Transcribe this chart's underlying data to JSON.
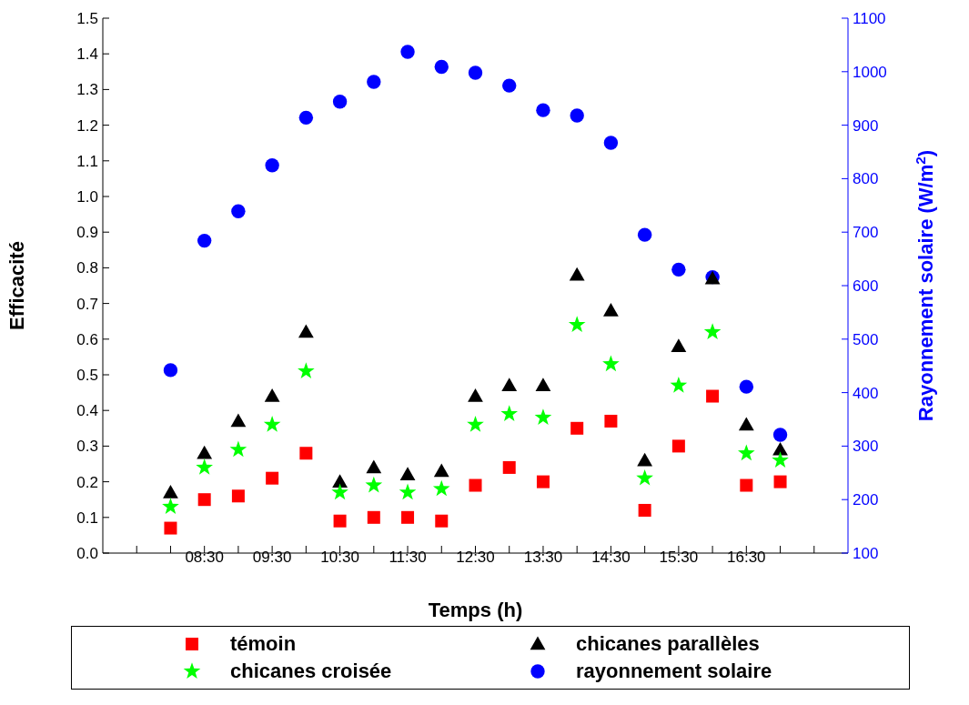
{
  "chart_data": {
    "type": "scatter",
    "xlabel": "Temps (h)",
    "ylabel": "Efficacité",
    "y2label": "Rayonnement solaire (W/m$^{2}$)",
    "x": [
      8,
      8.5,
      9,
      9.5,
      10,
      10.5,
      11,
      11.5,
      12,
      12.5,
      13,
      13.5,
      14,
      14.5,
      15,
      15.5,
      16,
      16.5,
      17
    ],
    "series": [
      {
        "name": "témoin",
        "color": "#ff0000",
        "marker": "square",
        "values": [
          0.07,
          0.15,
          0.16,
          0.21,
          0.28,
          0.09,
          0.1,
          0.1,
          0.09,
          0.19,
          0.24,
          0.2,
          0.35,
          0.37,
          0.12,
          0.3,
          0.44,
          0.19,
          0.2
        ]
      },
      {
        "name": "chicanes parallèles",
        "color": "#000000",
        "marker": "triangle",
        "values": [
          0.17,
          0.28,
          0.37,
          0.44,
          0.62,
          0.2,
          0.24,
          0.22,
          0.23,
          0.44,
          0.47,
          0.47,
          0.78,
          0.68,
          0.26,
          0.58,
          0.77,
          0.36,
          0.29
        ]
      },
      {
        "name": "chicanes croisée",
        "color": "#00ff00",
        "marker": "star",
        "values": [
          0.13,
          0.24,
          0.29,
          0.36,
          0.51,
          0.17,
          0.19,
          0.17,
          0.18,
          0.36,
          0.39,
          0.38,
          0.64,
          0.53,
          0.21,
          0.47,
          0.62,
          0.28,
          0.26
        ]
      },
      {
        "name": "rayonnement solaire",
        "color": "#0000ff",
        "marker": "circle",
        "axis": "y2",
        "values": [
          442,
          684,
          739,
          825,
          914,
          944,
          981,
          1037,
          1009,
          998,
          974,
          928,
          918,
          867,
          695,
          630,
          616,
          411,
          321
        ]
      }
    ],
    "xlim": [
      7,
      18
    ],
    "xticks": [
      {
        "value": 7.5,
        "label": null
      },
      {
        "value": 8,
        "label": null
      },
      {
        "value": 8.5,
        "label": "08:30"
      },
      {
        "value": 9,
        "label": null
      },
      {
        "value": 9.5,
        "label": "09:30"
      },
      {
        "value": 10,
        "label": null
      },
      {
        "value": 10.5,
        "label": "10:30"
      },
      {
        "value": 11,
        "label": null
      },
      {
        "value": 11.5,
        "label": "11:30"
      },
      {
        "value": 12,
        "label": null
      },
      {
        "value": 12.5,
        "label": "12:30"
      },
      {
        "value": 13,
        "label": null
      },
      {
        "value": 13.5,
        "label": "13:30"
      },
      {
        "value": 14,
        "label": null
      },
      {
        "value": 14.5,
        "label": "14:30"
      },
      {
        "value": 15,
        "label": null
      },
      {
        "value": 15.5,
        "label": "15:30"
      },
      {
        "value": 16,
        "label": null
      },
      {
        "value": 16.5,
        "label": "16:30"
      },
      {
        "value": 17,
        "label": null
      },
      {
        "value": 17.5,
        "label": null
      }
    ],
    "ylim": [
      0,
      1.5
    ],
    "yticks": [
      {
        "value": 0,
        "label": "0.0"
      },
      0.1,
      0.2,
      0.3,
      0.4,
      0.5,
      0.6,
      0.7,
      0.8,
      0.9,
      {
        "value": 1,
        "label": "1.0"
      },
      1.1,
      1.2,
      1.3,
      1.4,
      1.5
    ],
    "y2lim": [
      100,
      1100
    ],
    "y2ticks": [
      100,
      200,
      300,
      400,
      500,
      600,
      700,
      800,
      900,
      1000,
      1100
    ],
    "grid": false,
    "legend": "bottom"
  }
}
